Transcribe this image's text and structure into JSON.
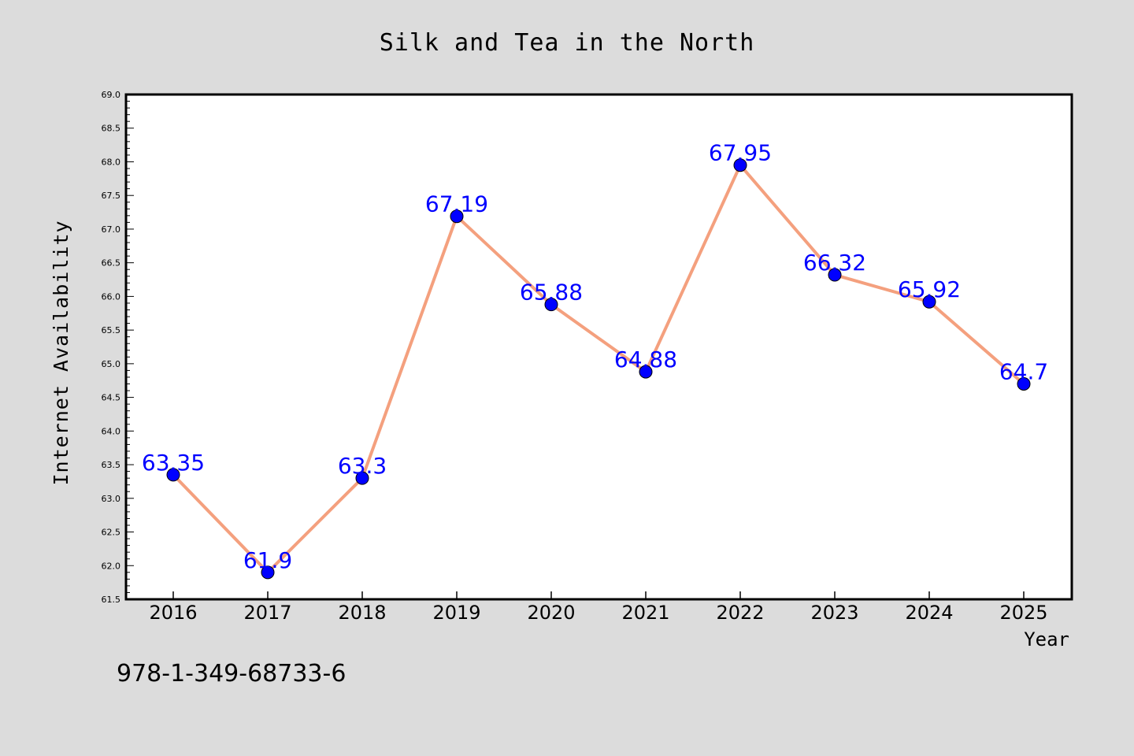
{
  "chart_data": {
    "type": "line",
    "title": "Silk and Tea in the North",
    "xlabel": "Year",
    "ylabel": "Internet Availability",
    "categories": [
      "2016",
      "2017",
      "2018",
      "2019",
      "2020",
      "2021",
      "2022",
      "2023",
      "2024",
      "2025"
    ],
    "series": [
      {
        "values": [
          63.35,
          61.9,
          63.3,
          67.19,
          65.88,
          64.88,
          67.95,
          66.32,
          65.92,
          64.7
        ],
        "data_labels": [
          "63.35",
          "61.9",
          "63.3",
          "67.19",
          "65.88",
          "64.88",
          "67.95",
          "66.32",
          "65.92",
          "64.7"
        ],
        "line_color": "#f4a07e",
        "marker_color": "#0000ff",
        "label_color": "#0000ff"
      }
    ],
    "ylim": [
      61.5,
      69.0
    ],
    "yticks": [
      "61.5",
      "62.0",
      "62.5",
      "63.0",
      "63.5",
      "64.0",
      "64.5",
      "65.0",
      "65.5",
      "66.0",
      "66.5",
      "67.0",
      "67.5",
      "68.0",
      "68.5",
      "69.0"
    ],
    "grid": false,
    "legend": "none"
  },
  "footer": {
    "isbn": "978-1-349-68733-6"
  },
  "colors": {
    "figure_background": "#dcdcdc",
    "plot_background": "#ffffff",
    "axis": "#000000"
  }
}
